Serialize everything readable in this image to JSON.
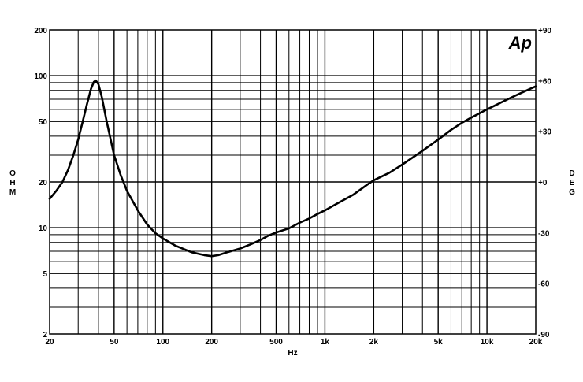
{
  "chart_data": {
    "type": "line",
    "title": "",
    "logo_text": "Ap",
    "xlabel": "Hz",
    "ylabel_left": "OHM",
    "ylabel_right": "DEG",
    "x_scale": "log",
    "y_scale": "log",
    "xlim": [
      20,
      20000
    ],
    "ylim": [
      2,
      200
    ],
    "y2lim": [
      -90,
      90
    ],
    "grid": true,
    "x_ticks": [
      {
        "value": 20,
        "label": "20"
      },
      {
        "value": 50,
        "label": "50"
      },
      {
        "value": 100,
        "label": "100"
      },
      {
        "value": 200,
        "label": "200"
      },
      {
        "value": 500,
        "label": "500"
      },
      {
        "value": 1000,
        "label": "1k"
      },
      {
        "value": 2000,
        "label": "2k"
      },
      {
        "value": 5000,
        "label": "5k"
      },
      {
        "value": 10000,
        "label": "10k"
      },
      {
        "value": 20000,
        "label": "20k"
      }
    ],
    "y_ticks": [
      {
        "value": 2,
        "label": "2"
      },
      {
        "value": 5,
        "label": "5"
      },
      {
        "value": 10,
        "label": "10"
      },
      {
        "value": 20,
        "label": "20"
      },
      {
        "value": 50,
        "label": "50"
      },
      {
        "value": 100,
        "label": "100"
      },
      {
        "value": 200,
        "label": "200"
      }
    ],
    "y2_ticks": [
      {
        "value": 90,
        "label": "+90"
      },
      {
        "value": 60,
        "label": "+60"
      },
      {
        "value": 30,
        "label": "+30"
      },
      {
        "value": 0,
        "label": "+0"
      },
      {
        "value": -30,
        "label": "-30"
      },
      {
        "value": -60,
        "label": "-60"
      },
      {
        "value": -90,
        "label": "-90"
      }
    ],
    "series": [
      {
        "points": [
          [
            20,
            15.5
          ],
          [
            22,
            17.5
          ],
          [
            24,
            20
          ],
          [
            26,
            24
          ],
          [
            28,
            30
          ],
          [
            30,
            38
          ],
          [
            32,
            50
          ],
          [
            34,
            65
          ],
          [
            36,
            82
          ],
          [
            37.5,
            91
          ],
          [
            38.5,
            93
          ],
          [
            40,
            88
          ],
          [
            42,
            72
          ],
          [
            45,
            50
          ],
          [
            50,
            30
          ],
          [
            55,
            22
          ],
          [
            60,
            17.5
          ],
          [
            70,
            13
          ],
          [
            80,
            10.5
          ],
          [
            90,
            9.2
          ],
          [
            100,
            8.5
          ],
          [
            120,
            7.6
          ],
          [
            150,
            6.9
          ],
          [
            180,
            6.6
          ],
          [
            200,
            6.5
          ],
          [
            220,
            6.6
          ],
          [
            250,
            6.9
          ],
          [
            300,
            7.3
          ],
          [
            350,
            7.8
          ],
          [
            400,
            8.3
          ],
          [
            450,
            8.9
          ],
          [
            500,
            9.3
          ],
          [
            600,
            9.9
          ],
          [
            700,
            10.8
          ],
          [
            800,
            11.5
          ],
          [
            900,
            12.3
          ],
          [
            1000,
            13
          ],
          [
            1200,
            14.5
          ],
          [
            1500,
            16.5
          ],
          [
            1800,
            19
          ],
          [
            2000,
            20.5
          ],
          [
            2500,
            23
          ],
          [
            3000,
            26
          ],
          [
            4000,
            32
          ],
          [
            5000,
            38
          ],
          [
            6000,
            44
          ],
          [
            7000,
            49
          ],
          [
            8000,
            53
          ],
          [
            10000,
            60
          ],
          [
            12000,
            66
          ],
          [
            15000,
            74
          ],
          [
            18000,
            81
          ],
          [
            20000,
            85
          ]
        ]
      }
    ]
  }
}
